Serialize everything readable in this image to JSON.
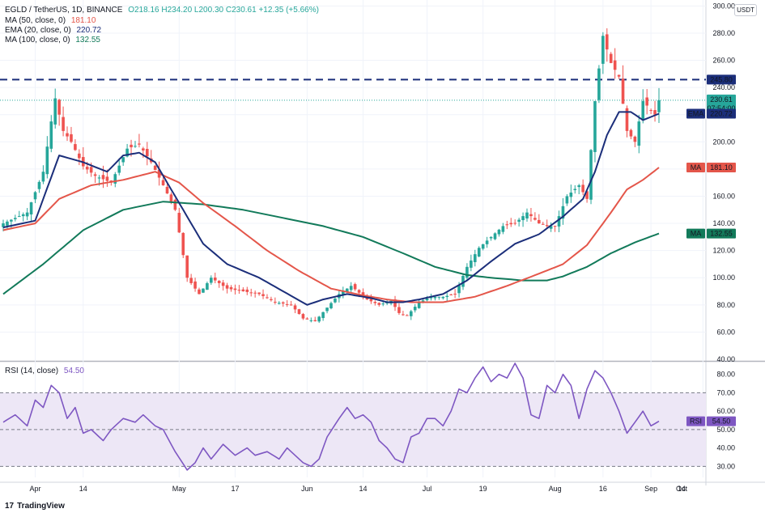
{
  "header": {
    "symbol": "EGLD / TetherUS, 1D, BINANCE",
    "ohlc": "O218.16  H234.20  L200.30  C230.61  +12.35 (+5.66%)",
    "legend": [
      {
        "label": "MA (50, close, 0)",
        "value": "181.10",
        "color": "#e4564a"
      },
      {
        "label": "EMA (20, close, 0)",
        "value": "220.72",
        "color": "#1b2e7a"
      },
      {
        "label": "MA (100, close, 0)",
        "value": "132.55",
        "color": "#127a5a"
      }
    ],
    "rsi_label": "RSI (14, close)",
    "rsi_value": "54.50",
    "currency_button": "USDT",
    "brand": "TradingView"
  },
  "colors": {
    "up": "#26a69a",
    "down": "#ef5350",
    "ema": "#1b2e7a",
    "ma50": "#e4564a",
    "ma100": "#127a5a",
    "rsi": "#7e57c2",
    "band": "#ede7f6"
  },
  "chart_data": [
    {
      "type": "candlestick",
      "title": "EGLD / TetherUS, 1D, BINANCE",
      "x_ticks": [
        "Apr",
        "14",
        "May",
        "17",
        "Jun",
        "14",
        "Jul",
        "19",
        "Aug",
        "16",
        "Sep",
        "14",
        "Oct"
      ],
      "y_ticks": [
        60,
        80,
        100,
        120,
        140,
        160,
        180,
        200,
        220,
        240,
        260,
        280,
        300
      ],
      "ylim": [
        40,
        302
      ],
      "resistance_line": {
        "value": 245.8,
        "label": "245.80"
      },
      "price_badges": [
        {
          "label": "",
          "value": "230.61",
          "sub": "07:54:00",
          "y": 230.61,
          "color": "#26a69a"
        },
        {
          "label": "EMA",
          "value": "220.72",
          "y": 220.72,
          "color": "#1b2e7a"
        },
        {
          "label": "MA",
          "value": "181.10",
          "y": 181.1,
          "color": "#e4564a"
        },
        {
          "label": "MA",
          "value": "132.55",
          "y": 132.55,
          "color": "#127a5a"
        }
      ],
      "close_anchors": [
        [
          0,
          140
        ],
        [
          6,
          148
        ],
        [
          10,
          178
        ],
        [
          12,
          215
        ],
        [
          13,
          232
        ],
        [
          15,
          208
        ],
        [
          17,
          200
        ],
        [
          20,
          182
        ],
        [
          23,
          175
        ],
        [
          27,
          170
        ],
        [
          31,
          195
        ],
        [
          34,
          198
        ],
        [
          37,
          185
        ],
        [
          40,
          168
        ],
        [
          43,
          150
        ],
        [
          46,
          100
        ],
        [
          49,
          88
        ],
        [
          52,
          100
        ],
        [
          56,
          92
        ],
        [
          60,
          90
        ],
        [
          64,
          88
        ],
        [
          68,
          82
        ],
        [
          72,
          80
        ],
        [
          75,
          70
        ],
        [
          78,
          68
        ],
        [
          81,
          78
        ],
        [
          84,
          88
        ],
        [
          87,
          94
        ],
        [
          91,
          84
        ],
        [
          94,
          80
        ],
        [
          97,
          83
        ],
        [
          99,
          74
        ],
        [
          101,
          72
        ],
        [
          104,
          82
        ],
        [
          107,
          86
        ],
        [
          110,
          86
        ],
        [
          113,
          88
        ],
        [
          116,
          108
        ],
        [
          119,
          122
        ],
        [
          122,
          130
        ],
        [
          125,
          138
        ],
        [
          128,
          140
        ],
        [
          131,
          148
        ],
        [
          134,
          140
        ],
        [
          136,
          138
        ],
        [
          138,
          138
        ],
        [
          141,
          160
        ],
        [
          144,
          168
        ],
        [
          146,
          158
        ],
        [
          148,
          230
        ],
        [
          150,
          278
        ],
        [
          152,
          258
        ],
        [
          154,
          248
        ],
        [
          156,
          208
        ],
        [
          158,
          200
        ],
        [
          160,
          230
        ],
        [
          163,
          220
        ],
        [
          164,
          230.61
        ]
      ],
      "ema20_anchors": [
        [
          0,
          137
        ],
        [
          8,
          142
        ],
        [
          14,
          190
        ],
        [
          20,
          185
        ],
        [
          26,
          178
        ],
        [
          30,
          190
        ],
        [
          34,
          192
        ],
        [
          38,
          185
        ],
        [
          42,
          165
        ],
        [
          46,
          145
        ],
        [
          50,
          125
        ],
        [
          56,
          110
        ],
        [
          64,
          100
        ],
        [
          70,
          90
        ],
        [
          76,
          80
        ],
        [
          80,
          84
        ],
        [
          86,
          88
        ],
        [
          92,
          85
        ],
        [
          96,
          82
        ],
        [
          100,
          82
        ],
        [
          104,
          84
        ],
        [
          110,
          88
        ],
        [
          116,
          98
        ],
        [
          122,
          112
        ],
        [
          128,
          125
        ],
        [
          134,
          132
        ],
        [
          140,
          145
        ],
        [
          145,
          158
        ],
        [
          148,
          178
        ],
        [
          151,
          205
        ],
        [
          154,
          222
        ],
        [
          157,
          222
        ],
        [
          160,
          216
        ],
        [
          164,
          220.72
        ]
      ],
      "ma50_anchors": [
        [
          0,
          135
        ],
        [
          8,
          140
        ],
        [
          14,
          158
        ],
        [
          22,
          168
        ],
        [
          30,
          172
        ],
        [
          38,
          178
        ],
        [
          44,
          170
        ],
        [
          50,
          155
        ],
        [
          58,
          138
        ],
        [
          66,
          120
        ],
        [
          74,
          105
        ],
        [
          82,
          92
        ],
        [
          90,
          87
        ],
        [
          96,
          84
        ],
        [
          102,
          82
        ],
        [
          110,
          82
        ],
        [
          118,
          86
        ],
        [
          126,
          94
        ],
        [
          134,
          103
        ],
        [
          140,
          110
        ],
        [
          146,
          124
        ],
        [
          152,
          148
        ],
        [
          156,
          165
        ],
        [
          160,
          172
        ],
        [
          164,
          181.1
        ]
      ],
      "ma100_anchors": [
        [
          0,
          88
        ],
        [
          10,
          110
        ],
        [
          20,
          135
        ],
        [
          30,
          150
        ],
        [
          40,
          156
        ],
        [
          50,
          154
        ],
        [
          60,
          150
        ],
        [
          70,
          144
        ],
        [
          80,
          138
        ],
        [
          90,
          130
        ],
        [
          100,
          118
        ],
        [
          108,
          108
        ],
        [
          116,
          102
        ],
        [
          122,
          100
        ],
        [
          130,
          98
        ],
        [
          136,
          98
        ],
        [
          140,
          101
        ],
        [
          146,
          108
        ],
        [
          152,
          118
        ],
        [
          158,
          126
        ],
        [
          164,
          132.55
        ]
      ]
    },
    {
      "type": "line",
      "title": "RSI (14, close)",
      "y_ticks": [
        30,
        40,
        50,
        60,
        70,
        80
      ],
      "ylim": [
        24,
        86
      ],
      "band": [
        30,
        70
      ],
      "mid": 50,
      "value_badge": {
        "label": "RSI",
        "value": "54.50"
      },
      "rsi_anchors": [
        [
          0,
          54
        ],
        [
          3,
          58
        ],
        [
          6,
          52
        ],
        [
          8,
          66
        ],
        [
          10,
          62
        ],
        [
          12,
          74
        ],
        [
          14,
          70
        ],
        [
          16,
          56
        ],
        [
          18,
          62
        ],
        [
          20,
          48
        ],
        [
          22,
          50
        ],
        [
          25,
          44
        ],
        [
          27,
          50
        ],
        [
          30,
          56
        ],
        [
          33,
          54
        ],
        [
          35,
          58
        ],
        [
          38,
          52
        ],
        [
          40,
          50
        ],
        [
          43,
          38
        ],
        [
          46,
          28
        ],
        [
          48,
          32
        ],
        [
          50,
          40
        ],
        [
          52,
          34
        ],
        [
          55,
          42
        ],
        [
          58,
          36
        ],
        [
          61,
          40
        ],
        [
          63,
          36
        ],
        [
          66,
          38
        ],
        [
          69,
          34
        ],
        [
          71,
          40
        ],
        [
          73,
          36
        ],
        [
          75,
          32
        ],
        [
          77,
          30
        ],
        [
          79,
          34
        ],
        [
          81,
          46
        ],
        [
          84,
          56
        ],
        [
          86,
          62
        ],
        [
          88,
          56
        ],
        [
          90,
          58
        ],
        [
          92,
          54
        ],
        [
          94,
          44
        ],
        [
          96,
          40
        ],
        [
          98,
          34
        ],
        [
          100,
          32
        ],
        [
          102,
          46
        ],
        [
          104,
          48
        ],
        [
          106,
          56
        ],
        [
          108,
          56
        ],
        [
          110,
          52
        ],
        [
          112,
          60
        ],
        [
          114,
          72
        ],
        [
          116,
          70
        ],
        [
          118,
          78
        ],
        [
          120,
          84
        ],
        [
          122,
          76
        ],
        [
          124,
          80
        ],
        [
          126,
          78
        ],
        [
          128,
          86
        ],
        [
          130,
          78
        ],
        [
          132,
          58
        ],
        [
          134,
          56
        ],
        [
          136,
          74
        ],
        [
          138,
          70
        ],
        [
          140,
          80
        ],
        [
          142,
          74
        ],
        [
          144,
          56
        ],
        [
          146,
          72
        ],
        [
          148,
          82
        ],
        [
          150,
          78
        ],
        [
          152,
          70
        ],
        [
          154,
          60
        ],
        [
          156,
          48
        ],
        [
          158,
          54
        ],
        [
          160,
          60
        ],
        [
          162,
          52
        ],
        [
          164,
          54.5
        ]
      ]
    }
  ]
}
